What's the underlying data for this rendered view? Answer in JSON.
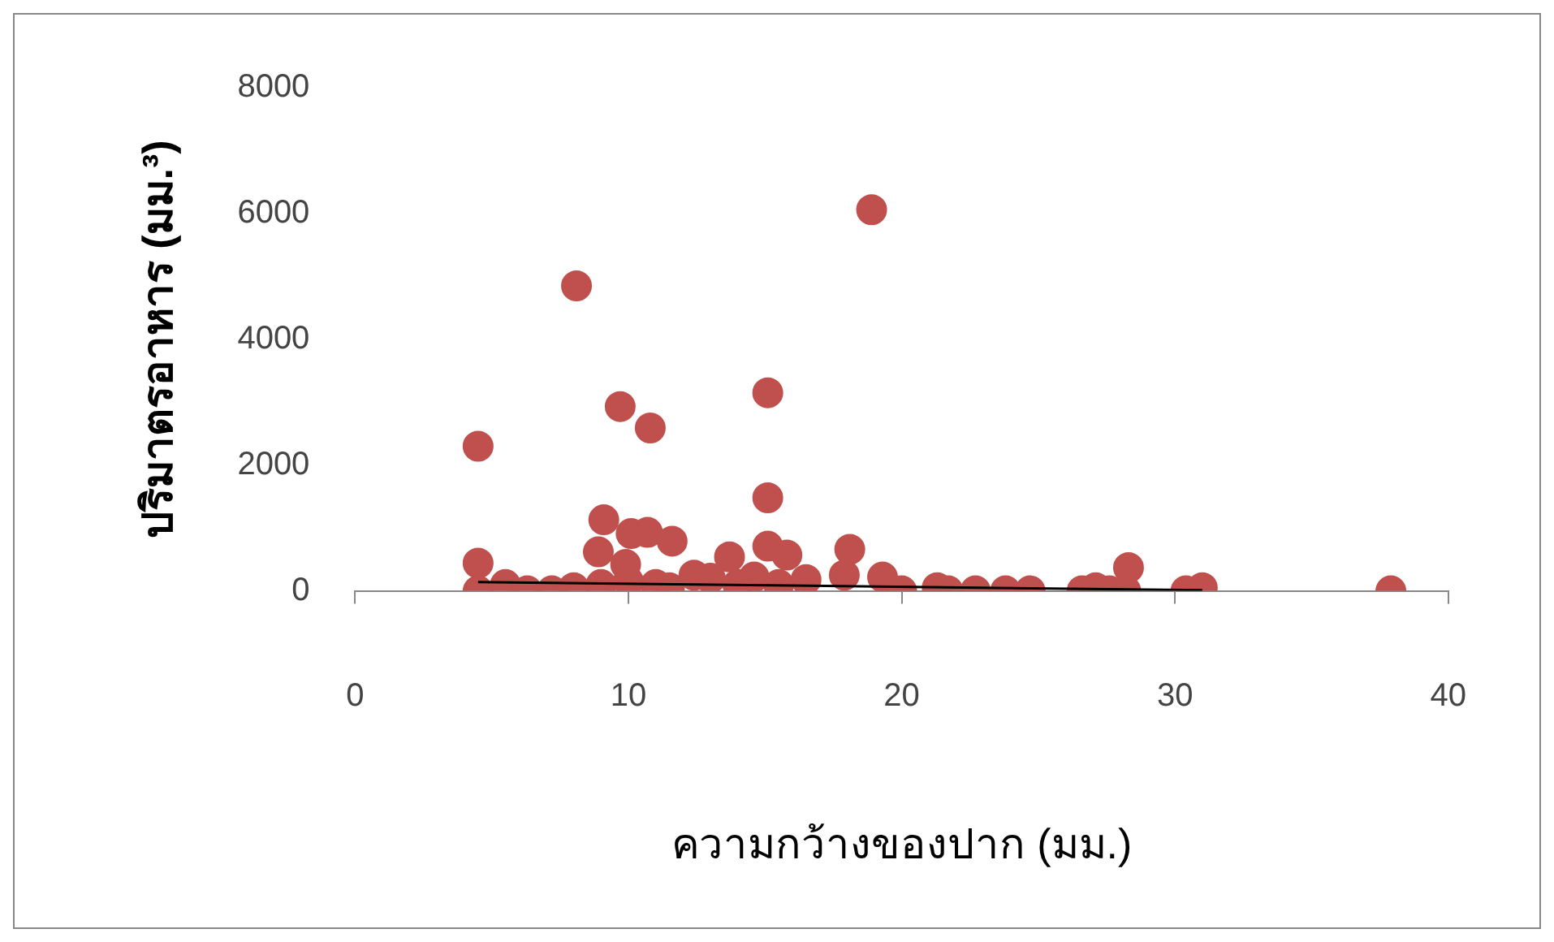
{
  "chart_data": {
    "type": "scatter",
    "xlabel": "ความกว้างของปาก (มม.)",
    "ylabel": "ปริมาตรอาหาร (มม.³)",
    "xlim": [
      0,
      40
    ],
    "xticks": [
      0,
      10,
      20,
      30,
      40
    ],
    "ylim": [
      0,
      8000
    ],
    "yticks": [
      0,
      2000,
      4000,
      6000,
      8000
    ],
    "grid": false,
    "legend": false,
    "marker": "circle",
    "series": [
      {
        "color": "#c0504d",
        "x": [
          4.5,
          8.1,
          9.7,
          10.8,
          15.1,
          18.9,
          15.1,
          9.1,
          4.5,
          10.1,
          10.7,
          11.6,
          13.7,
          15.1,
          15.8,
          18.1,
          19.3,
          28.3,
          8.9,
          9.9,
          12.4,
          13.0,
          14.6,
          16.5,
          17.9,
          4.5,
          5.5,
          6.3,
          7.2,
          8.0,
          9.0,
          10.0,
          11.0,
          11.5,
          14.0,
          15.5,
          20.0,
          21.3,
          21.7,
          22.7,
          23.8,
          24.7,
          26.6,
          27.1,
          27.6,
          28.2,
          30.4,
          31.0,
          37.9
        ],
        "values": [
          2300,
          4850,
          2930,
          2590,
          3150,
          6060,
          1480,
          1130,
          440,
          910,
          930,
          790,
          540,
          710,
          570,
          660,
          220,
          370,
          620,
          420,
          250,
          200,
          220,
          180,
          250,
          0,
          100,
          0,
          0,
          50,
          100,
          150,
          100,
          50,
          100,
          100,
          0,
          50,
          0,
          0,
          0,
          0,
          0,
          50,
          0,
          0,
          0,
          50,
          0
        ]
      },
      {
        "type": "line",
        "color": "#000000",
        "marker": "none",
        "x": [
          4.5,
          31.0
        ],
        "values": [
          140,
          10
        ]
      }
    ]
  }
}
